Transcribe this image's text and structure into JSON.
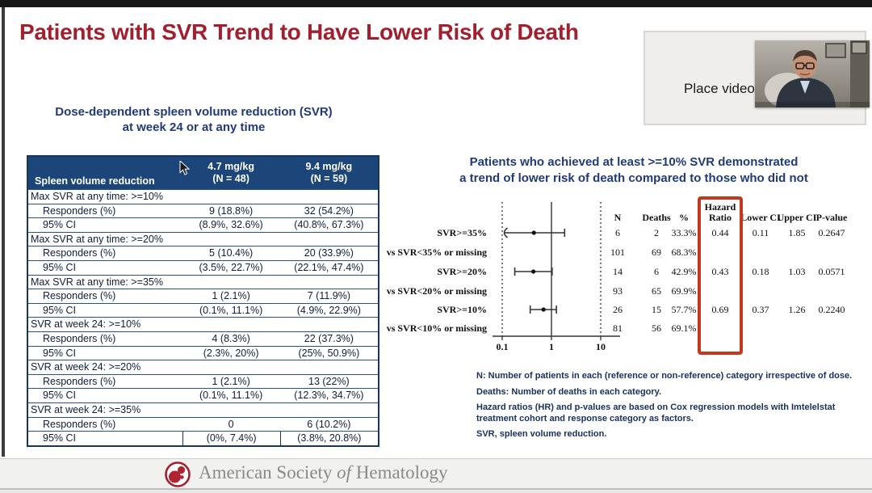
{
  "slide": {
    "title": "Patients with SVR Trend to Have Lower Risk of Death"
  },
  "video": {
    "placeholder_label": "Place video"
  },
  "left_panel": {
    "subtitle_line1": "Dose-dependent spleen volume reduction (SVR)",
    "subtitle_line2": "at week 24 or at any time",
    "table": {
      "header": {
        "col0": "Spleen volume reduction",
        "col1_line1": "4.7 mg/kg",
        "col1_line2": "(N = 48)",
        "col2_line1": "9.4 mg/kg",
        "col2_line2": "(N = 59)"
      },
      "rows": [
        {
          "type": "section",
          "label": "Max SVR at any time: >=10%"
        },
        {
          "type": "data",
          "label": "Responders (%)",
          "c1": "9 (18.8%)",
          "c2": "32 (54.2%)"
        },
        {
          "type": "data",
          "label": "95% CI",
          "c1": "(8.9%, 32.6%)",
          "c2": "(40.8%, 67.3%)"
        },
        {
          "type": "section",
          "label": "Max SVR at any time: >=20%"
        },
        {
          "type": "data",
          "label": "Responders (%)",
          "c1": "5 (10.4%)",
          "c2": "20 (33.9%)"
        },
        {
          "type": "data",
          "label": "95% CI",
          "c1": "(3.5%, 22.7%)",
          "c2": "(22.1%, 47.4%)"
        },
        {
          "type": "section",
          "label": "Max SVR at any time: >=35%"
        },
        {
          "type": "data",
          "label": "Responders (%)",
          "c1": "1 (2.1%)",
          "c2": "7 (11.9%)"
        },
        {
          "type": "data",
          "label": "95% CI",
          "c1": "(0.1%, 11.1%)",
          "c2": "(4.9%, 22.9%)"
        },
        {
          "type": "section",
          "label": "SVR at week 24: >=10%"
        },
        {
          "type": "data",
          "label": "Responders (%)",
          "c1": "4 (8.3%)",
          "c2": "22 (37.3%)"
        },
        {
          "type": "data",
          "label": "95% CI",
          "c1": "(2.3%, 20%)",
          "c2": "(25%, 50.9%)"
        },
        {
          "type": "section",
          "label": "SVR at week 24: >=20%"
        },
        {
          "type": "data",
          "label": "Responders (%)",
          "c1": "1 (2.1%)",
          "c2": "13 (22%)"
        },
        {
          "type": "data",
          "label": "95% CI",
          "c1": "(0.1%, 11.1%)",
          "c2": "(12.3%, 34.7%)"
        },
        {
          "type": "section",
          "label": "SVR at week 24: >=35%"
        },
        {
          "type": "data",
          "label": "Responders (%)",
          "c1": "0",
          "c2": "6 (10.2%)"
        },
        {
          "type": "data",
          "label": "95% CI",
          "c1": "(0%, 7.4%)",
          "c2": "(3.8%, 20.8%)"
        }
      ]
    }
  },
  "right_panel": {
    "headline_line1": "Patients who achieved at least >=10% SVR demonstrated",
    "headline_line2": "a trend of lower risk of death compared to those who did not",
    "footnotes": [
      "N: Number of patients in each (reference or non-reference) category irrespective of dose.",
      "Deaths: Number of deaths in each category.",
      "Hazard ratios (HR) and p-values are based on Cox regression models with Imtelelstat treatment cohort and response category as factors.",
      "SVR, spleen volume reduction."
    ]
  },
  "chart_data": {
    "type": "forest",
    "x_axis": {
      "scale": "log",
      "ticks": [
        "0.1",
        "1",
        "10"
      ],
      "tick_values": [
        0.1,
        1,
        10
      ],
      "reference_line": 1
    },
    "columns": {
      "n": "N",
      "deaths": "Deaths",
      "pct": "%",
      "hr_line1": "Hazard",
      "hr_line2": "Ratio",
      "lower": "Lower CI",
      "upper": "Upper CI",
      "p": "P-value"
    },
    "rows": [
      {
        "label": "SVR>=35%",
        "n": "6",
        "deaths": "2",
        "pct": "33.3%",
        "hr": 0.44,
        "lower": 0.11,
        "upper": 1.85,
        "hr_text": "0.44",
        "lower_text": "0.11",
        "upper_text": "1.85",
        "p": "0.2647",
        "clipped_low": true
      },
      {
        "label": "vs SVR<35% or missing",
        "n": "101",
        "deaths": "69",
        "pct": "68.3%"
      },
      {
        "label": "SVR>=20%",
        "n": "14",
        "deaths": "6",
        "pct": "42.9%",
        "hr": 0.43,
        "lower": 0.18,
        "upper": 1.03,
        "hr_text": "0.43",
        "lower_text": "0.18",
        "upper_text": "1.03",
        "p": "0.0571"
      },
      {
        "label": "vs SVR<20% or missing",
        "n": "93",
        "deaths": "65",
        "pct": "69.9%"
      },
      {
        "label": "SVR>=10%",
        "n": "26",
        "deaths": "15",
        "pct": "57.7%",
        "hr": 0.69,
        "lower": 0.37,
        "upper": 1.26,
        "hr_text": "0.69",
        "lower_text": "0.37",
        "upper_text": "1.26",
        "p": "0.2240"
      },
      {
        "label": "vs SVR<10% or missing",
        "n": "81",
        "deaths": "56",
        "pct": "69.1%"
      }
    ],
    "highlight_box_color": "#C23A1E"
  },
  "footer": {
    "org_part1": "American Society ",
    "org_part2": "of",
    "org_part3": " Hematology"
  },
  "colors": {
    "title_red": "#A02030",
    "table_header_navy": "#1C4679",
    "headline_blue": "#203A7A",
    "red_box": "#C23A1E",
    "footer_text_gray": "#8a8a8a"
  }
}
